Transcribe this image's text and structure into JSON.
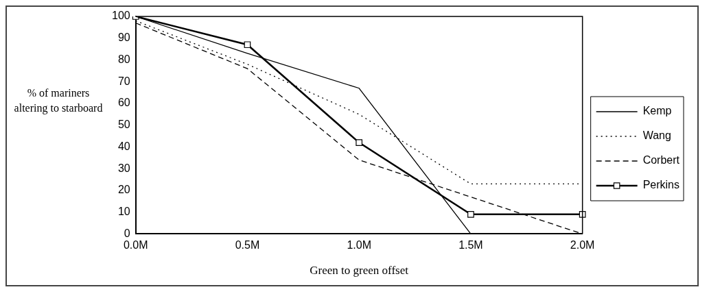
{
  "chart_data": {
    "type": "line",
    "xlabel": "Green to green offset",
    "ylabel": "% of mariners altering to starboard",
    "categories": [
      "0.0M",
      "0.5M",
      "1.0M",
      "1.5M",
      "2.0M"
    ],
    "ylim": [
      0,
      100
    ],
    "yticks": [
      0,
      10,
      20,
      30,
      40,
      50,
      60,
      70,
      80,
      90,
      100
    ],
    "grid": false,
    "legend": "right",
    "series": [
      {
        "name": "Kemp",
        "color": "#000000",
        "values": [
          100,
          83,
          67,
          0,
          null
        ],
        "line_style": "solid",
        "marker": "none"
      },
      {
        "name": "Wang",
        "color": "#000000",
        "values": [
          98,
          78,
          55,
          23,
          23
        ],
        "line_style": "dotted",
        "marker": "none"
      },
      {
        "name": "Corbert",
        "color": "#000000",
        "values": [
          97,
          76,
          34,
          17,
          0
        ],
        "line_style": "dashed",
        "marker": "none"
      },
      {
        "name": "Perkins",
        "color": "#000000",
        "values": [
          100,
          87,
          42,
          9,
          9
        ],
        "line_style": "solid",
        "marker": "square"
      }
    ]
  }
}
